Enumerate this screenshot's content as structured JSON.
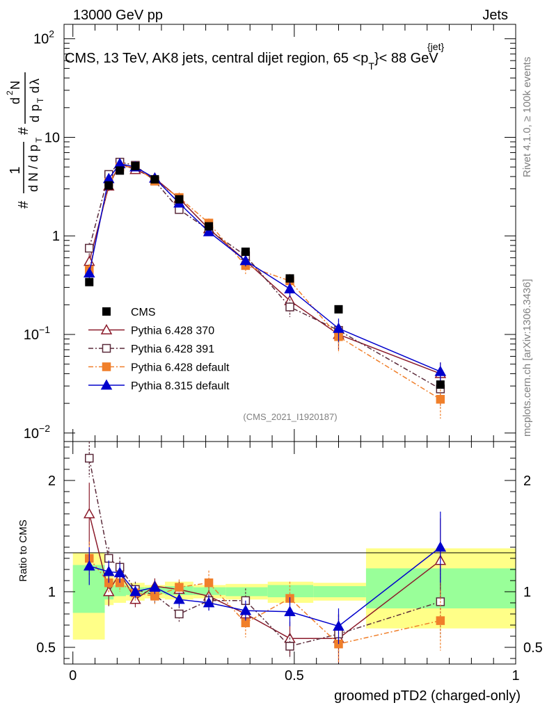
{
  "chart_data": [
    {
      "type": "line",
      "panel": "main",
      "yscale": "log",
      "ylim": [
        0.0082,
        140
      ],
      "xlim": [
        -0.02,
        1.0
      ],
      "header_left": "13000 GeV pp",
      "header_right": "Jets",
      "title": "CMS, 13 TeV, AK8 jets, central dijet region, 65 <p",
      "title_sub": "T",
      "title_sup": "{jet}",
      "title_end": "}< 88 GeV",
      "ylabel_parts": [
        "#",
        "1",
        "d N / d p",
        "T",
        "#",
        "d",
        "p",
        "T",
        "d",
        "λ",
        "d",
        "2",
        "N"
      ],
      "y_ticks": [
        {
          "value": 0.01,
          "base": "10",
          "exp": "−2"
        },
        {
          "value": 0.1,
          "base": "10",
          "exp": "−1"
        },
        {
          "value": 1,
          "base": "1",
          "exp": ""
        },
        {
          "value": 10,
          "base": "10",
          "exp": ""
        },
        {
          "value": 100,
          "base": "10",
          "exp": "2"
        }
      ],
      "watermark": "(CMS_2021_I1920187)",
      "side_text_top": "Rivet 4.1.0, ≥ 100k events",
      "side_text_bottom": "mcplots.cern.ch [arXiv:1306.3436]",
      "legend": [
        {
          "label": "CMS",
          "style": "cms"
        },
        {
          "label": "Pythia 6.428 370",
          "style": "p370"
        },
        {
          "label": "Pythia 6.428 391",
          "style": "p391"
        },
        {
          "label": "Pythia 6.428 default",
          "style": "pdef"
        },
        {
          "label": "Pythia 8.315 default",
          "style": "p8"
        }
      ],
      "cms": {
        "x": [
          0.037,
          0.081,
          0.106,
          0.141,
          0.185,
          0.24,
          0.307,
          0.39,
          0.49,
          0.6,
          0.83
        ],
        "y": [
          0.34,
          3.25,
          4.6,
          5.1,
          3.75,
          2.35,
          1.25,
          0.69,
          0.37,
          0.18,
          0.031
        ]
      },
      "series": [
        {
          "name": "Pythia 6.428 370",
          "style": "p370",
          "x": [
            0.037,
            0.081,
            0.106,
            0.141,
            0.185,
            0.24,
            0.307,
            0.39,
            0.49,
            0.6,
            0.83
          ],
          "y": [
            0.55,
            3.2,
            5.4,
            4.7,
            3.85,
            2.4,
            1.18,
            0.56,
            0.22,
            0.1,
            0.04
          ],
          "err": [
            0.1,
            0.35,
            0.5,
            0.3,
            0.25,
            0.15,
            0.12,
            0.08,
            0.05,
            0.03,
            0.012
          ]
        },
        {
          "name": "Pythia 6.428 391",
          "style": "p391",
          "x": [
            0.037,
            0.081,
            0.106,
            0.141,
            0.185,
            0.24,
            0.307,
            0.39,
            0.49,
            0.6,
            0.83
          ],
          "y": [
            0.75,
            4.2,
            5.6,
            5.2,
            3.6,
            1.85,
            1.15,
            0.63,
            0.19,
            0.11,
            0.028
          ],
          "err": [
            0.1,
            0.35,
            0.45,
            0.35,
            0.25,
            0.15,
            0.12,
            0.08,
            0.04,
            0.03,
            0.01
          ]
        },
        {
          "name": "Pythia 6.428 default",
          "style": "pdef",
          "x": [
            0.037,
            0.081,
            0.106,
            0.141,
            0.185,
            0.24,
            0.307,
            0.39,
            0.49,
            0.6,
            0.83
          ],
          "y": [
            0.45,
            3.5,
            5.0,
            5.05,
            3.6,
            2.45,
            1.35,
            0.5,
            0.35,
            0.095,
            0.022
          ],
          "err": [
            0.07,
            0.3,
            0.4,
            0.3,
            0.25,
            0.18,
            0.15,
            0.09,
            0.06,
            0.03,
            0.008
          ]
        },
        {
          "name": "Pythia 8.315 default",
          "style": "p8",
          "x": [
            0.037,
            0.081,
            0.106,
            0.141,
            0.185,
            0.24,
            0.307,
            0.39,
            0.49,
            0.6,
            0.83
          ],
          "y": [
            0.42,
            3.8,
            5.4,
            5.0,
            3.85,
            2.15,
            1.1,
            0.56,
            0.29,
            0.115,
            0.042
          ],
          "err": [
            0.06,
            0.3,
            0.45,
            0.3,
            0.25,
            0.15,
            0.1,
            0.07,
            0.05,
            0.03,
            0.01
          ]
        }
      ]
    },
    {
      "type": "line",
      "panel": "ratio",
      "ylabel": "Ratio to CMS",
      "xlabel": "groomed pTD2 (charged-only)",
      "ylim": [
        0.35,
        2.35
      ],
      "xlim": [
        -0.02,
        1.0
      ],
      "y_ticks": [
        {
          "value": 0.5,
          "label": "0.5"
        },
        {
          "value": 1,
          "label": "1"
        },
        {
          "value": 2,
          "label": "2"
        }
      ],
      "x_ticks": [
        {
          "value": 0,
          "label": "0"
        },
        {
          "value": 0.5,
          "label": "0.5"
        },
        {
          "value": 1,
          "label": "1"
        }
      ],
      "bands": [
        {
          "x0": 0.0,
          "x1": 0.072,
          "g_lo": 0.81,
          "g_hi": 1.24,
          "y_lo": 0.57,
          "y_hi": 1.35
        },
        {
          "x0": 0.072,
          "x1": 0.092,
          "g_lo": 0.93,
          "g_hi": 1.1,
          "y_lo": 0.88,
          "y_hi": 1.16
        },
        {
          "x0": 0.092,
          "x1": 0.12,
          "g_lo": 0.96,
          "g_hi": 1.06,
          "y_lo": 0.9,
          "y_hi": 1.12
        },
        {
          "x0": 0.12,
          "x1": 0.162,
          "g_lo": 0.97,
          "g_hi": 1.04,
          "y_lo": 0.92,
          "y_hi": 1.08
        },
        {
          "x0": 0.162,
          "x1": 0.208,
          "g_lo": 0.98,
          "g_hi": 1.04,
          "y_lo": 0.94,
          "y_hi": 1.06
        },
        {
          "x0": 0.208,
          "x1": 0.272,
          "g_lo": 0.97,
          "g_hi": 1.05,
          "y_lo": 0.93,
          "y_hi": 1.09
        },
        {
          "x0": 0.272,
          "x1": 0.345,
          "g_lo": 0.97,
          "g_hi": 1.04,
          "y_lo": 0.94,
          "y_hi": 1.06
        },
        {
          "x0": 0.345,
          "x1": 0.44,
          "g_lo": 0.96,
          "g_hi": 1.04,
          "y_lo": 0.93,
          "y_hi": 1.07
        },
        {
          "x0": 0.44,
          "x1": 0.543,
          "g_lo": 0.95,
          "g_hi": 1.06,
          "y_lo": 0.9,
          "y_hi": 1.09
        },
        {
          "x0": 0.543,
          "x1": 0.662,
          "g_lo": 0.95,
          "g_hi": 1.05,
          "y_lo": 0.92,
          "y_hi": 1.08
        },
        {
          "x0": 0.662,
          "x1": 1.0,
          "g_lo": 0.85,
          "g_hi": 1.21,
          "y_lo": 0.67,
          "y_hi": 1.39
        }
      ],
      "series": [
        {
          "name": "Pythia 6.428 370",
          "style": "p370",
          "x": [
            0.037,
            0.081,
            0.106,
            0.141,
            0.185,
            0.24,
            0.307,
            0.39,
            0.49,
            0.6,
            0.83
          ],
          "y": [
            1.7,
            1.0,
            1.17,
            0.93,
            1.05,
            1.02,
            0.96,
            0.8,
            0.58,
            0.58,
            1.28
          ],
          "err": [
            0.28,
            0.13,
            0.1,
            0.07,
            0.07,
            0.07,
            0.08,
            0.11,
            0.15,
            0.22,
            0.38
          ]
        },
        {
          "name": "Pythia 6.428 391",
          "style": "p391",
          "x": [
            0.037,
            0.081,
            0.106,
            0.141,
            0.185,
            0.24,
            0.307,
            0.39,
            0.49,
            0.6,
            0.83
          ],
          "y": [
            2.2,
            1.3,
            1.22,
            1.02,
            0.97,
            0.8,
            0.92,
            0.92,
            0.51,
            0.62,
            0.91
          ],
          "err": [
            0.17,
            0.1,
            0.09,
            0.07,
            0.07,
            0.07,
            0.09,
            0.11,
            0.11,
            0.17,
            0.32
          ]
        },
        {
          "name": "Pythia 6.428 default",
          "style": "pdef",
          "x": [
            0.037,
            0.081,
            0.106,
            0.141,
            0.185,
            0.24,
            0.307,
            0.39,
            0.49,
            0.6,
            0.83
          ],
          "y": [
            1.3,
            1.08,
            1.08,
            0.99,
            0.96,
            1.04,
            1.08,
            0.72,
            0.94,
            0.53,
            0.74
          ],
          "err": [
            0.15,
            0.09,
            0.08,
            0.07,
            0.07,
            0.07,
            0.11,
            0.13,
            0.15,
            0.17,
            0.27
          ]
        },
        {
          "name": "Pythia 8.315 default",
          "style": "p8",
          "x": [
            0.037,
            0.081,
            0.106,
            0.141,
            0.185,
            0.24,
            0.307,
            0.39,
            0.49,
            0.6,
            0.83
          ],
          "y": [
            1.23,
            1.18,
            1.17,
            1.0,
            1.04,
            0.93,
            0.9,
            0.83,
            0.82,
            0.69,
            1.4
          ],
          "err": [
            0.17,
            0.1,
            0.09,
            0.06,
            0.06,
            0.06,
            0.07,
            0.09,
            0.13,
            0.16,
            0.32
          ]
        }
      ]
    }
  ],
  "styles": {
    "cms": {
      "color": "#000000"
    },
    "p370": {
      "color": "#8b1a2a",
      "dash": "",
      "marker": "triangle-open"
    },
    "p391": {
      "color": "#5a2a3a",
      "dash": "7,3,2,3",
      "marker": "square-open"
    },
    "pdef": {
      "color": "#f07f2a",
      "dash": "7,3,2,3",
      "marker": "square-filled"
    },
    "p8": {
      "color": "#0000cc",
      "dash": "",
      "marker": "triangle-filled"
    }
  }
}
